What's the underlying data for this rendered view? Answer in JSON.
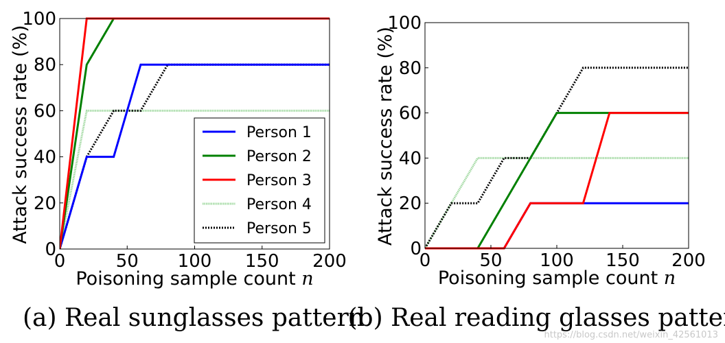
{
  "watermark": "https://blog.csdn.net/weixin_42561013",
  "series_colors": [
    "#0000ff",
    "#008000",
    "#ff0000",
    "#9fd89f",
    "#000000"
  ],
  "chart_data": [
    {
      "type": "line",
      "panel": "a",
      "caption": "(a) Real sunglasses pattern",
      "xlabel_text": "Poisoning sample count",
      "xlabel_var": "n",
      "ylabel": "Attack success rate (%)",
      "xlim": [
        0,
        200
      ],
      "ylim": [
        0,
        100
      ],
      "xticks": [
        0,
        50,
        100,
        150,
        200
      ],
      "yticks": [
        0,
        20,
        40,
        60,
        80,
        100
      ],
      "grid": false,
      "legend": "lower-right",
      "series": [
        {
          "name": "Person 1",
          "x": [
            0,
            20,
            40,
            60,
            80,
            100,
            120,
            140,
            160,
            180,
            200
          ],
          "values": [
            0,
            40,
            40,
            80,
            80,
            80,
            80,
            80,
            80,
            80,
            80
          ]
        },
        {
          "name": "Person 2",
          "x": [
            0,
            20,
            40,
            60,
            80,
            100,
            120,
            140,
            160,
            180,
            200
          ],
          "values": [
            0,
            80,
            100,
            100,
            100,
            100,
            100,
            100,
            100,
            100,
            100
          ]
        },
        {
          "name": "Person 3",
          "x": [
            0,
            20,
            40,
            60,
            80,
            100,
            120,
            140,
            160,
            180,
            200
          ],
          "values": [
            0,
            100,
            100,
            100,
            100,
            100,
            100,
            100,
            100,
            100,
            100
          ]
        },
        {
          "name": "Person 4",
          "x": [
            0,
            20,
            40,
            60,
            80,
            100,
            120,
            140,
            160,
            180,
            200
          ],
          "values": [
            0,
            60,
            60,
            60,
            60,
            60,
            60,
            60,
            60,
            60,
            60
          ]
        },
        {
          "name": "Person 5",
          "x": [
            0,
            20,
            40,
            60,
            80,
            100,
            120,
            140,
            160,
            180,
            200
          ],
          "values": [
            0,
            40,
            60,
            60,
            80,
            80,
            80,
            80,
            80,
            80,
            80
          ]
        }
      ]
    },
    {
      "type": "line",
      "panel": "b",
      "caption": "(b) Real reading glasses pattern",
      "xlabel_text": "Poisoning sample count",
      "xlabel_var": "n",
      "ylabel": "Attack success rate (%)",
      "xlim": [
        0,
        200
      ],
      "ylim": [
        0,
        100
      ],
      "xticks": [
        0,
        50,
        100,
        150,
        200
      ],
      "yticks": [
        0,
        20,
        40,
        60,
        80,
        100
      ],
      "grid": false,
      "legend": "none",
      "series": [
        {
          "name": "Person 1",
          "x": [
            0,
            20,
            40,
            60,
            80,
            100,
            120,
            140,
            160,
            180,
            200
          ],
          "values": [
            0,
            0,
            0,
            0,
            20,
            20,
            20,
            20,
            20,
            20,
            20
          ]
        },
        {
          "name": "Person 2",
          "x": [
            0,
            20,
            40,
            60,
            80,
            100,
            120,
            140,
            160,
            180,
            200
          ],
          "values": [
            0,
            0,
            0,
            20,
            40,
            60,
            60,
            60,
            60,
            60,
            60
          ]
        },
        {
          "name": "Person 3",
          "x": [
            0,
            20,
            40,
            60,
            80,
            100,
            120,
            140,
            160,
            180,
            200
          ],
          "values": [
            0,
            0,
            0,
            0,
            20,
            20,
            20,
            60,
            60,
            60,
            60
          ]
        },
        {
          "name": "Person 4",
          "x": [
            0,
            20,
            40,
            60,
            80,
            100,
            120,
            140,
            160,
            180,
            200
          ],
          "values": [
            0,
            20,
            40,
            40,
            40,
            40,
            40,
            40,
            40,
            40,
            40
          ]
        },
        {
          "name": "Person 5",
          "x": [
            0,
            20,
            40,
            60,
            80,
            100,
            120,
            140,
            160,
            180,
            200
          ],
          "values": [
            0,
            20,
            20,
            40,
            40,
            60,
            80,
            80,
            80,
            80,
            80
          ]
        }
      ]
    }
  ]
}
